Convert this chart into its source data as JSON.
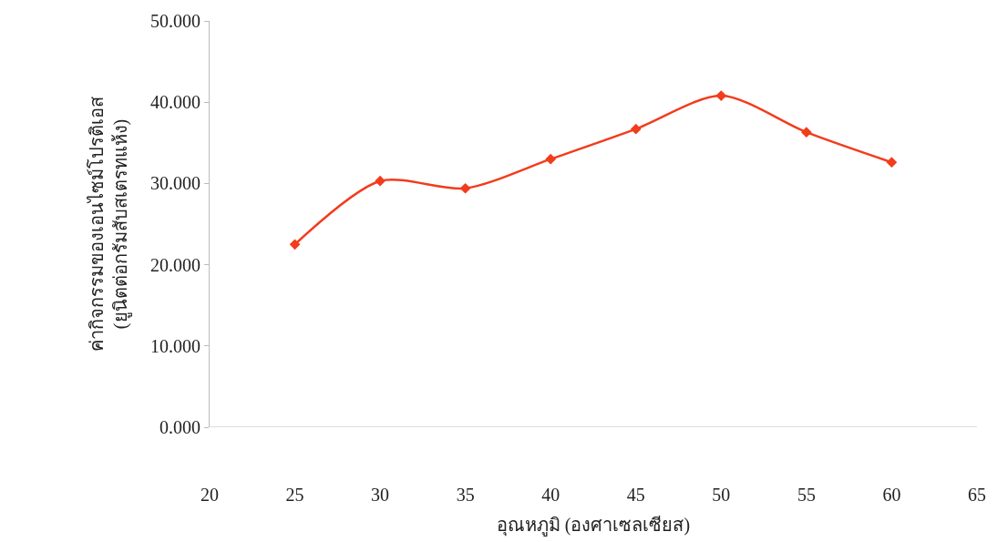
{
  "chart_data": {
    "type": "line",
    "xlabel": "อุณหภูมิ (องศาเซลเซียส)",
    "ylabel": "ค่ากิจกรรมของเอนไซม์โปรติเอส\n(ยูนิตต่อกรัมสับสเตรทแห้ง)",
    "x": [
      25,
      30,
      35,
      40,
      45,
      50,
      55,
      60
    ],
    "series": [
      {
        "color": "#f23c1c",
        "values": [
          22.5,
          30.3,
          29.4,
          33.0,
          36.7,
          40.8,
          36.3,
          32.6
        ]
      }
    ],
    "xlim": [
      20,
      65
    ],
    "xticks": [
      20,
      25,
      30,
      35,
      40,
      45,
      50,
      55,
      60,
      65
    ],
    "ylim": [
      0,
      50
    ],
    "yticks": [
      {
        "value": 0,
        "label": "0.000"
      },
      {
        "value": 10,
        "label": "10.000"
      },
      {
        "value": 20,
        "label": "20.000"
      },
      {
        "value": 30,
        "label": "30.000"
      },
      {
        "value": 40,
        "label": "40.000"
      },
      {
        "value": 50,
        "label": "50.000"
      }
    ],
    "marker": "diamond",
    "line_style": "solid"
  }
}
